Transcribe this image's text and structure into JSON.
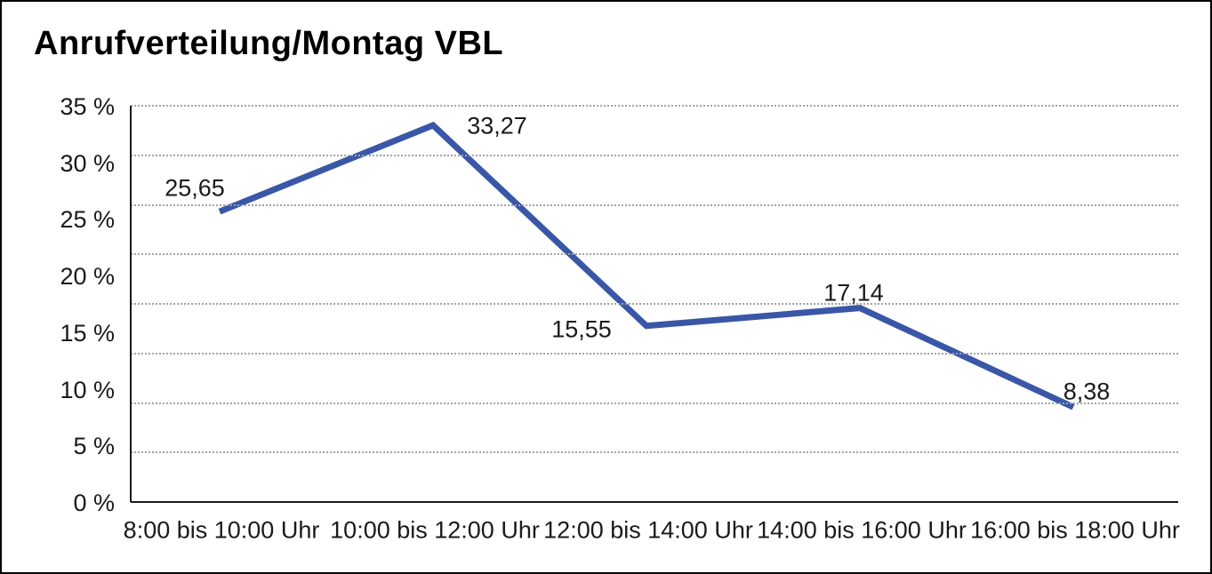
{
  "chart_data": {
    "type": "line",
    "title": "Anrufverteilung/Montag VBL",
    "categories": [
      "8:00 bis 10:00 Uhr",
      "10:00 bis 12:00 Uhr",
      "12:00 bis 14:00 Uhr",
      "14:00 bis 16:00 Uhr",
      "16:00 bis 18:00 Uhr"
    ],
    "values": [
      25.65,
      33.27,
      15.55,
      17.14,
      8.38
    ],
    "value_labels": [
      "25,65",
      "33,27",
      "15,55",
      "17,14",
      "8,38"
    ],
    "y_tick_labels": [
      "35 %",
      "30 %",
      "25 %",
      "20 %",
      "15 %",
      "10 %",
      "5 %",
      "0 %"
    ],
    "y_tick_values": [
      35,
      30,
      25,
      20,
      15,
      10,
      5,
      0
    ],
    "ylim": [
      0,
      35
    ],
    "xlabel": "",
    "ylabel": "",
    "grid": "horizontal-dotted",
    "gridline_count": 9,
    "legend_position": "none",
    "line_color": "#3A57A7",
    "grid_color": "#a3a3a3",
    "axis_color": "#1a1a1a",
    "text_color": "#1a1a1a",
    "background_color": "#ffffff"
  }
}
